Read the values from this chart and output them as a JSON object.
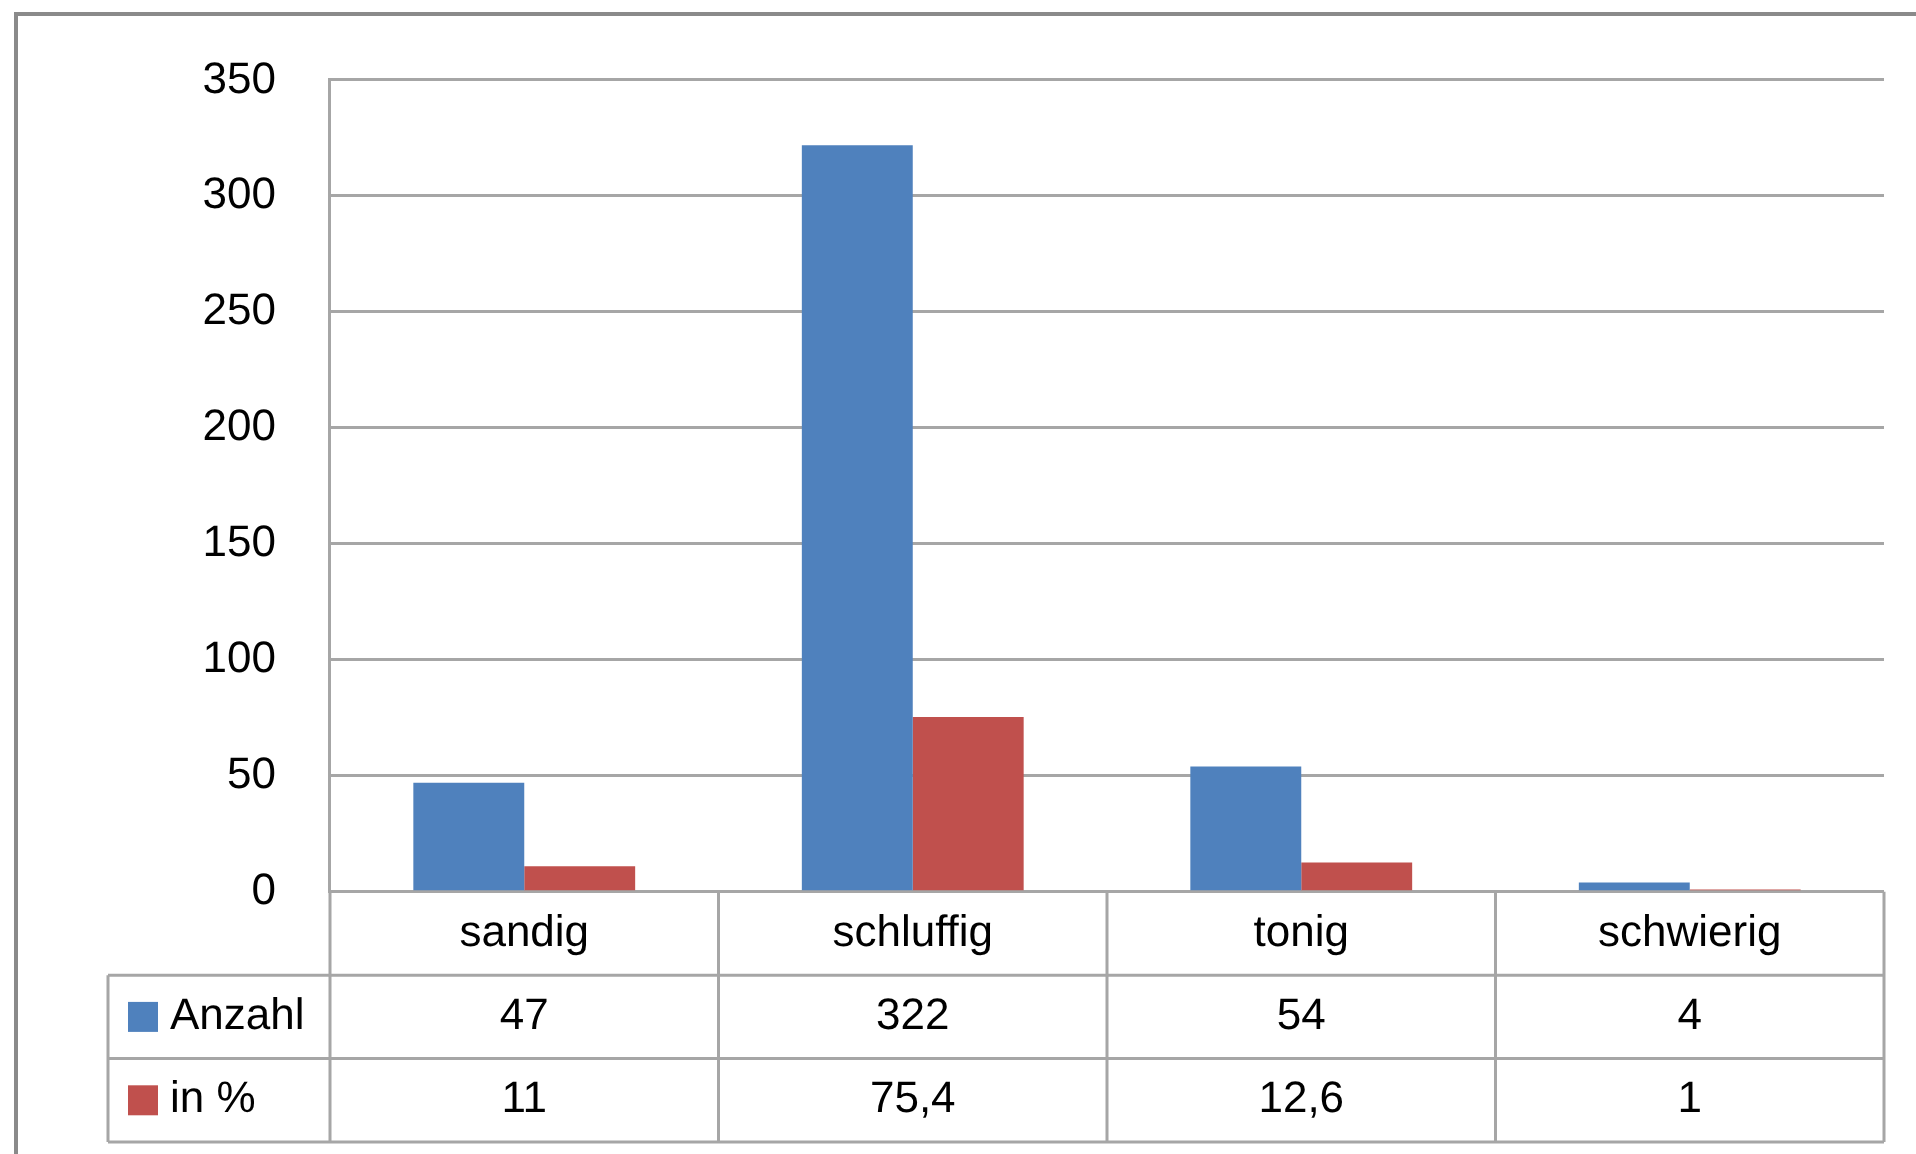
{
  "chart_data": {
    "type": "bar",
    "categories": [
      "sandig",
      "schluffig",
      "tonig",
      "schwierig"
    ],
    "series": [
      {
        "name": "Anzahl",
        "color": "#4f81bd",
        "values": [
          47,
          322,
          54,
          4
        ],
        "value_labels": [
          "47",
          "322",
          "54",
          "4"
        ]
      },
      {
        "name": "in %",
        "color": "#c0504d",
        "values": [
          11,
          75.4,
          12.6,
          1
        ],
        "value_labels": [
          "11",
          "75,4",
          "12,6",
          "1"
        ]
      }
    ],
    "ylim": [
      0,
      350
    ],
    "yticks": [
      0,
      50,
      100,
      150,
      200,
      250,
      300,
      350
    ],
    "grid": "y",
    "legend": "bottom left"
  }
}
